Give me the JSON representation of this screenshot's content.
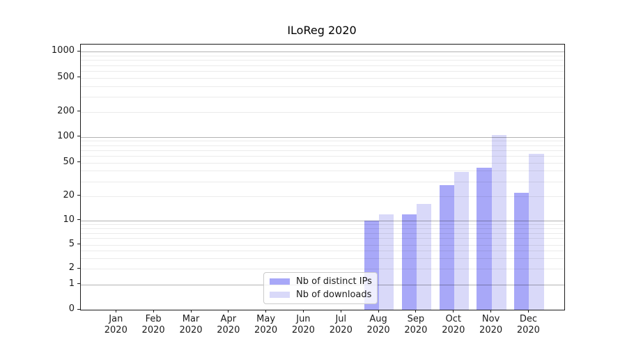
{
  "title": "ILoReg 2020",
  "chart_data": {
    "type": "bar",
    "title": "ILoReg 2020",
    "categories": [
      "Jan",
      "Feb",
      "Mar",
      "Apr",
      "May",
      "Jun",
      "Jul",
      "Aug",
      "Sep",
      "Oct",
      "Nov",
      "Dec"
    ],
    "category_year": "2020",
    "series": [
      {
        "name": "Nb of distinct IPs",
        "color": "#a8a8f8",
        "values": [
          0,
          0,
          0,
          0,
          0,
          0,
          0,
          10,
          12,
          27,
          44,
          22
        ]
      },
      {
        "name": "Nb of downloads",
        "color": "#d9d9f9",
        "values": [
          0,
          0,
          0,
          0,
          0,
          0,
          0,
          12,
          16,
          39,
          105,
          64
        ]
      }
    ],
    "ylabel": "",
    "xlabel": "",
    "yticks": [
      0,
      1,
      2,
      5,
      10,
      20,
      50,
      100,
      200,
      500,
      1000
    ],
    "major_gridlines": [
      1,
      10,
      100,
      1000
    ],
    "minor_gridlines": [
      2,
      3,
      4,
      5,
      6,
      7,
      8,
      9,
      20,
      30,
      40,
      50,
      60,
      70,
      80,
      90,
      200,
      300,
      400,
      500,
      600,
      700,
      800,
      900
    ],
    "scale": "symlog",
    "ylim": [
      0,
      1100
    ],
    "grid": true,
    "legend_position": "lower center"
  }
}
